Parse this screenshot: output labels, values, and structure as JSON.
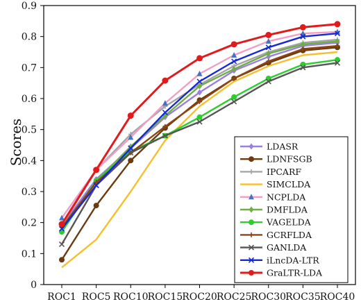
{
  "chart_data": {
    "type": "line",
    "ylabel": "Scores",
    "xlabel": "",
    "title": "",
    "ylim": [
      0,
      0.9
    ],
    "yticks": [
      "0",
      "0.1",
      "0.2",
      "0.3",
      "0.4",
      "0.5",
      "0.6",
      "0.7",
      "0.8",
      "0.9"
    ],
    "categories": [
      "ROC1",
      "ROC5",
      "ROC10",
      "ROC15",
      "ROC20",
      "ROC25",
      "ROC30",
      "ROC35",
      "ROC40"
    ],
    "grid": false,
    "legend_position": "bottom-right",
    "series": [
      {
        "name": "LDASR",
        "color": "#9a7fe0",
        "marker": "diamond",
        "values": [
          0.19,
          0.34,
          0.44,
          0.54,
          0.62,
          0.69,
          0.735,
          0.77,
          0.78
        ]
      },
      {
        "name": "LDNFSGB",
        "color": "#6b3a10",
        "marker": "circle",
        "values": [
          0.08,
          0.255,
          0.4,
          0.505,
          0.595,
          0.665,
          0.715,
          0.755,
          0.765
        ]
      },
      {
        "name": "IPCARF",
        "color": "#a5a5a5",
        "marker": "plus",
        "values": [
          0.19,
          0.37,
          0.485,
          0.575,
          0.645,
          0.705,
          0.75,
          0.78,
          0.79
        ]
      },
      {
        "name": "SIMCLDA",
        "color": "#f5c02c",
        "marker": "none",
        "values": [
          0.055,
          0.145,
          0.3,
          0.465,
          0.575,
          0.655,
          0.705,
          0.74,
          0.75
        ]
      },
      {
        "name": "NCPLDA",
        "color": "#ef9fc6",
        "marker": "triangle",
        "values": [
          0.215,
          0.37,
          0.475,
          0.585,
          0.68,
          0.74,
          0.785,
          0.81,
          0.815
        ]
      },
      {
        "name": "DMFLDA",
        "color": "#70ad47",
        "marker": "diamond",
        "values": [
          0.175,
          0.335,
          0.445,
          0.545,
          0.64,
          0.695,
          0.745,
          0.775,
          0.785
        ]
      },
      {
        "name": "VAGELDA",
        "color": "#2bcf2b",
        "marker": "circle",
        "values": [
          0.17,
          0.335,
          0.43,
          0.48,
          0.54,
          0.605,
          0.665,
          0.71,
          0.725
        ]
      },
      {
        "name": "GCRFLDA",
        "color": "#8b4513",
        "marker": "plus",
        "values": [
          0.185,
          0.33,
          0.425,
          0.51,
          0.59,
          0.665,
          0.72,
          0.76,
          0.77
        ]
      },
      {
        "name": "GANLDA",
        "color": "#555555",
        "marker": "x",
        "values": [
          0.13,
          0.32,
          0.425,
          0.48,
          0.525,
          0.59,
          0.655,
          0.7,
          0.715
        ]
      },
      {
        "name": "iLncDA-LTR",
        "color": "#1528d8",
        "marker": "x",
        "values": [
          0.18,
          0.32,
          0.44,
          0.555,
          0.655,
          0.72,
          0.765,
          0.8,
          0.81
        ]
      },
      {
        "name": "GraLTR-LDA",
        "color": "#e31a1c",
        "marker": "circle",
        "values": [
          0.195,
          0.37,
          0.545,
          0.658,
          0.73,
          0.775,
          0.805,
          0.83,
          0.84
        ]
      }
    ]
  }
}
